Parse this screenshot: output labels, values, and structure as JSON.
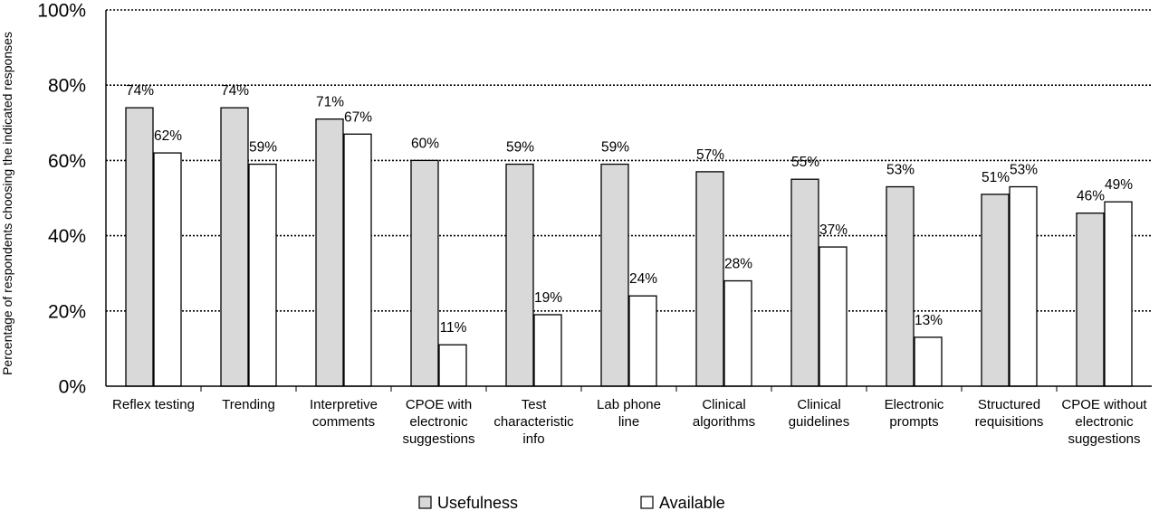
{
  "chart_data": {
    "type": "bar",
    "title": "",
    "xlabel": "",
    "ylabel": "Percentage of respondents choosing the indicated responses",
    "ylim": [
      0,
      100
    ],
    "yticks": [
      "0%",
      "20%",
      "40%",
      "60%",
      "80%",
      "100%"
    ],
    "grid": true,
    "legend_position": "bottom",
    "categories": [
      [
        "Reflex testing"
      ],
      [
        "Trending"
      ],
      [
        "Interpretive",
        "comments"
      ],
      [
        "CPOE with",
        "electronic",
        "suggestions"
      ],
      [
        "Test",
        "characteristic",
        "info"
      ],
      [
        "Lab phone",
        "line"
      ],
      [
        "Clinical",
        "algorithms"
      ],
      [
        "Clinical",
        "guidelines"
      ],
      [
        "Electronic",
        "prompts"
      ],
      [
        "Structured",
        "requisitions"
      ],
      [
        "CPOE without",
        "electronic",
        "suggestions"
      ]
    ],
    "series": [
      {
        "name": "Usefulness",
        "color": "#d9d9d9",
        "values": [
          74,
          74,
          71,
          60,
          59,
          59,
          57,
          55,
          53,
          51,
          46
        ],
        "labels": [
          "74%",
          "74%",
          "71%",
          "60%",
          "59%",
          "59%",
          "57%",
          "55%",
          "53%",
          "51%",
          "46%"
        ]
      },
      {
        "name": "Available",
        "color": "#ffffff",
        "values": [
          62,
          59,
          67,
          11,
          19,
          24,
          28,
          37,
          13,
          53,
          49
        ],
        "labels": [
          "62%",
          "59%",
          "67%",
          "11%",
          "19%",
          "24%",
          "28%",
          "37%",
          "13%",
          "53%",
          "49%"
        ]
      }
    ]
  }
}
